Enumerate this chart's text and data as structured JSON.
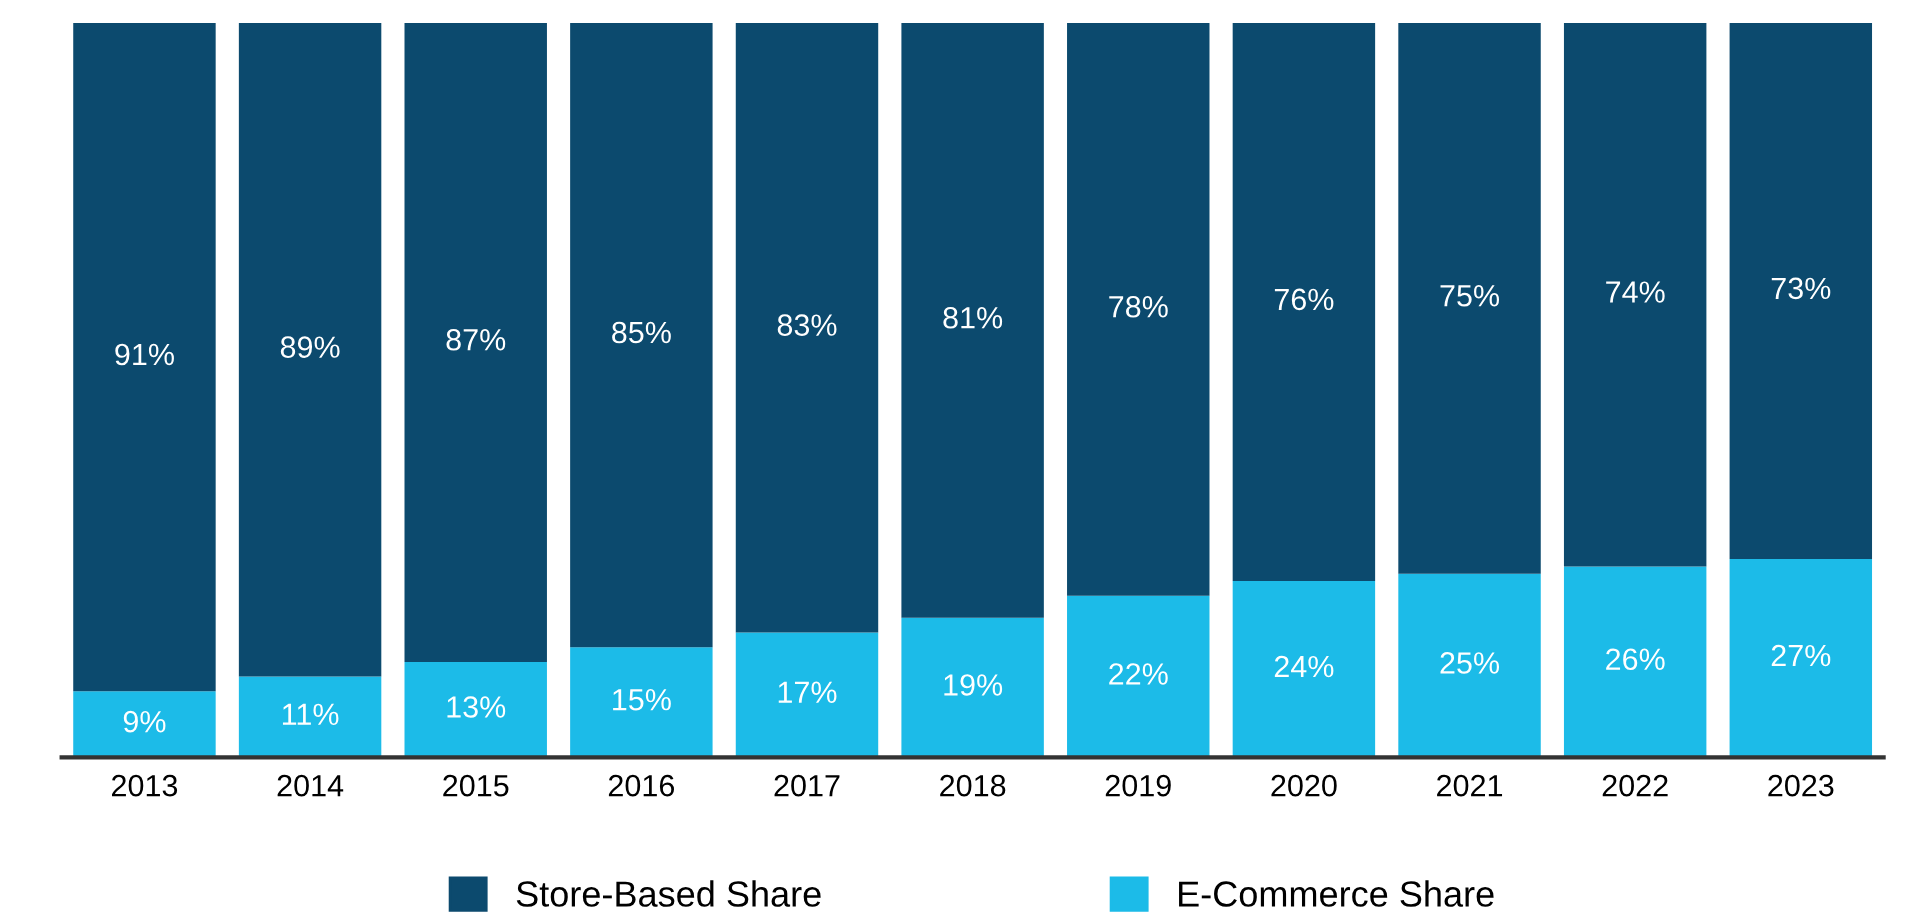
{
  "chart_data": {
    "type": "bar",
    "stacked": true,
    "legend": "bottom",
    "grid": false,
    "categories": [
      "2013",
      "2014",
      "2015",
      "2016",
      "2017",
      "2018",
      "2019",
      "2020",
      "2021",
      "2022",
      "2023"
    ],
    "series": [
      {
        "name": "E-Commerce Share",
        "color": "#1cbbe8",
        "values": [
          9,
          11,
          13,
          15,
          17,
          19,
          22,
          24,
          25,
          26,
          27
        ],
        "value_labels": [
          "9%",
          "11%",
          "13%",
          "15%",
          "17%",
          "19%",
          "22%",
          "24%",
          "25%",
          "26%",
          "27%"
        ]
      },
      {
        "name": "Store-Based Share",
        "color": "#0c4a6e",
        "values": [
          91,
          89,
          87,
          85,
          83,
          81,
          78,
          76,
          75,
          74,
          73
        ],
        "value_labels": [
          "91%",
          "89%",
          "87%",
          "85%",
          "83%",
          "81%",
          "78%",
          "76%",
          "75%",
          "74%",
          "73%"
        ]
      }
    ]
  }
}
